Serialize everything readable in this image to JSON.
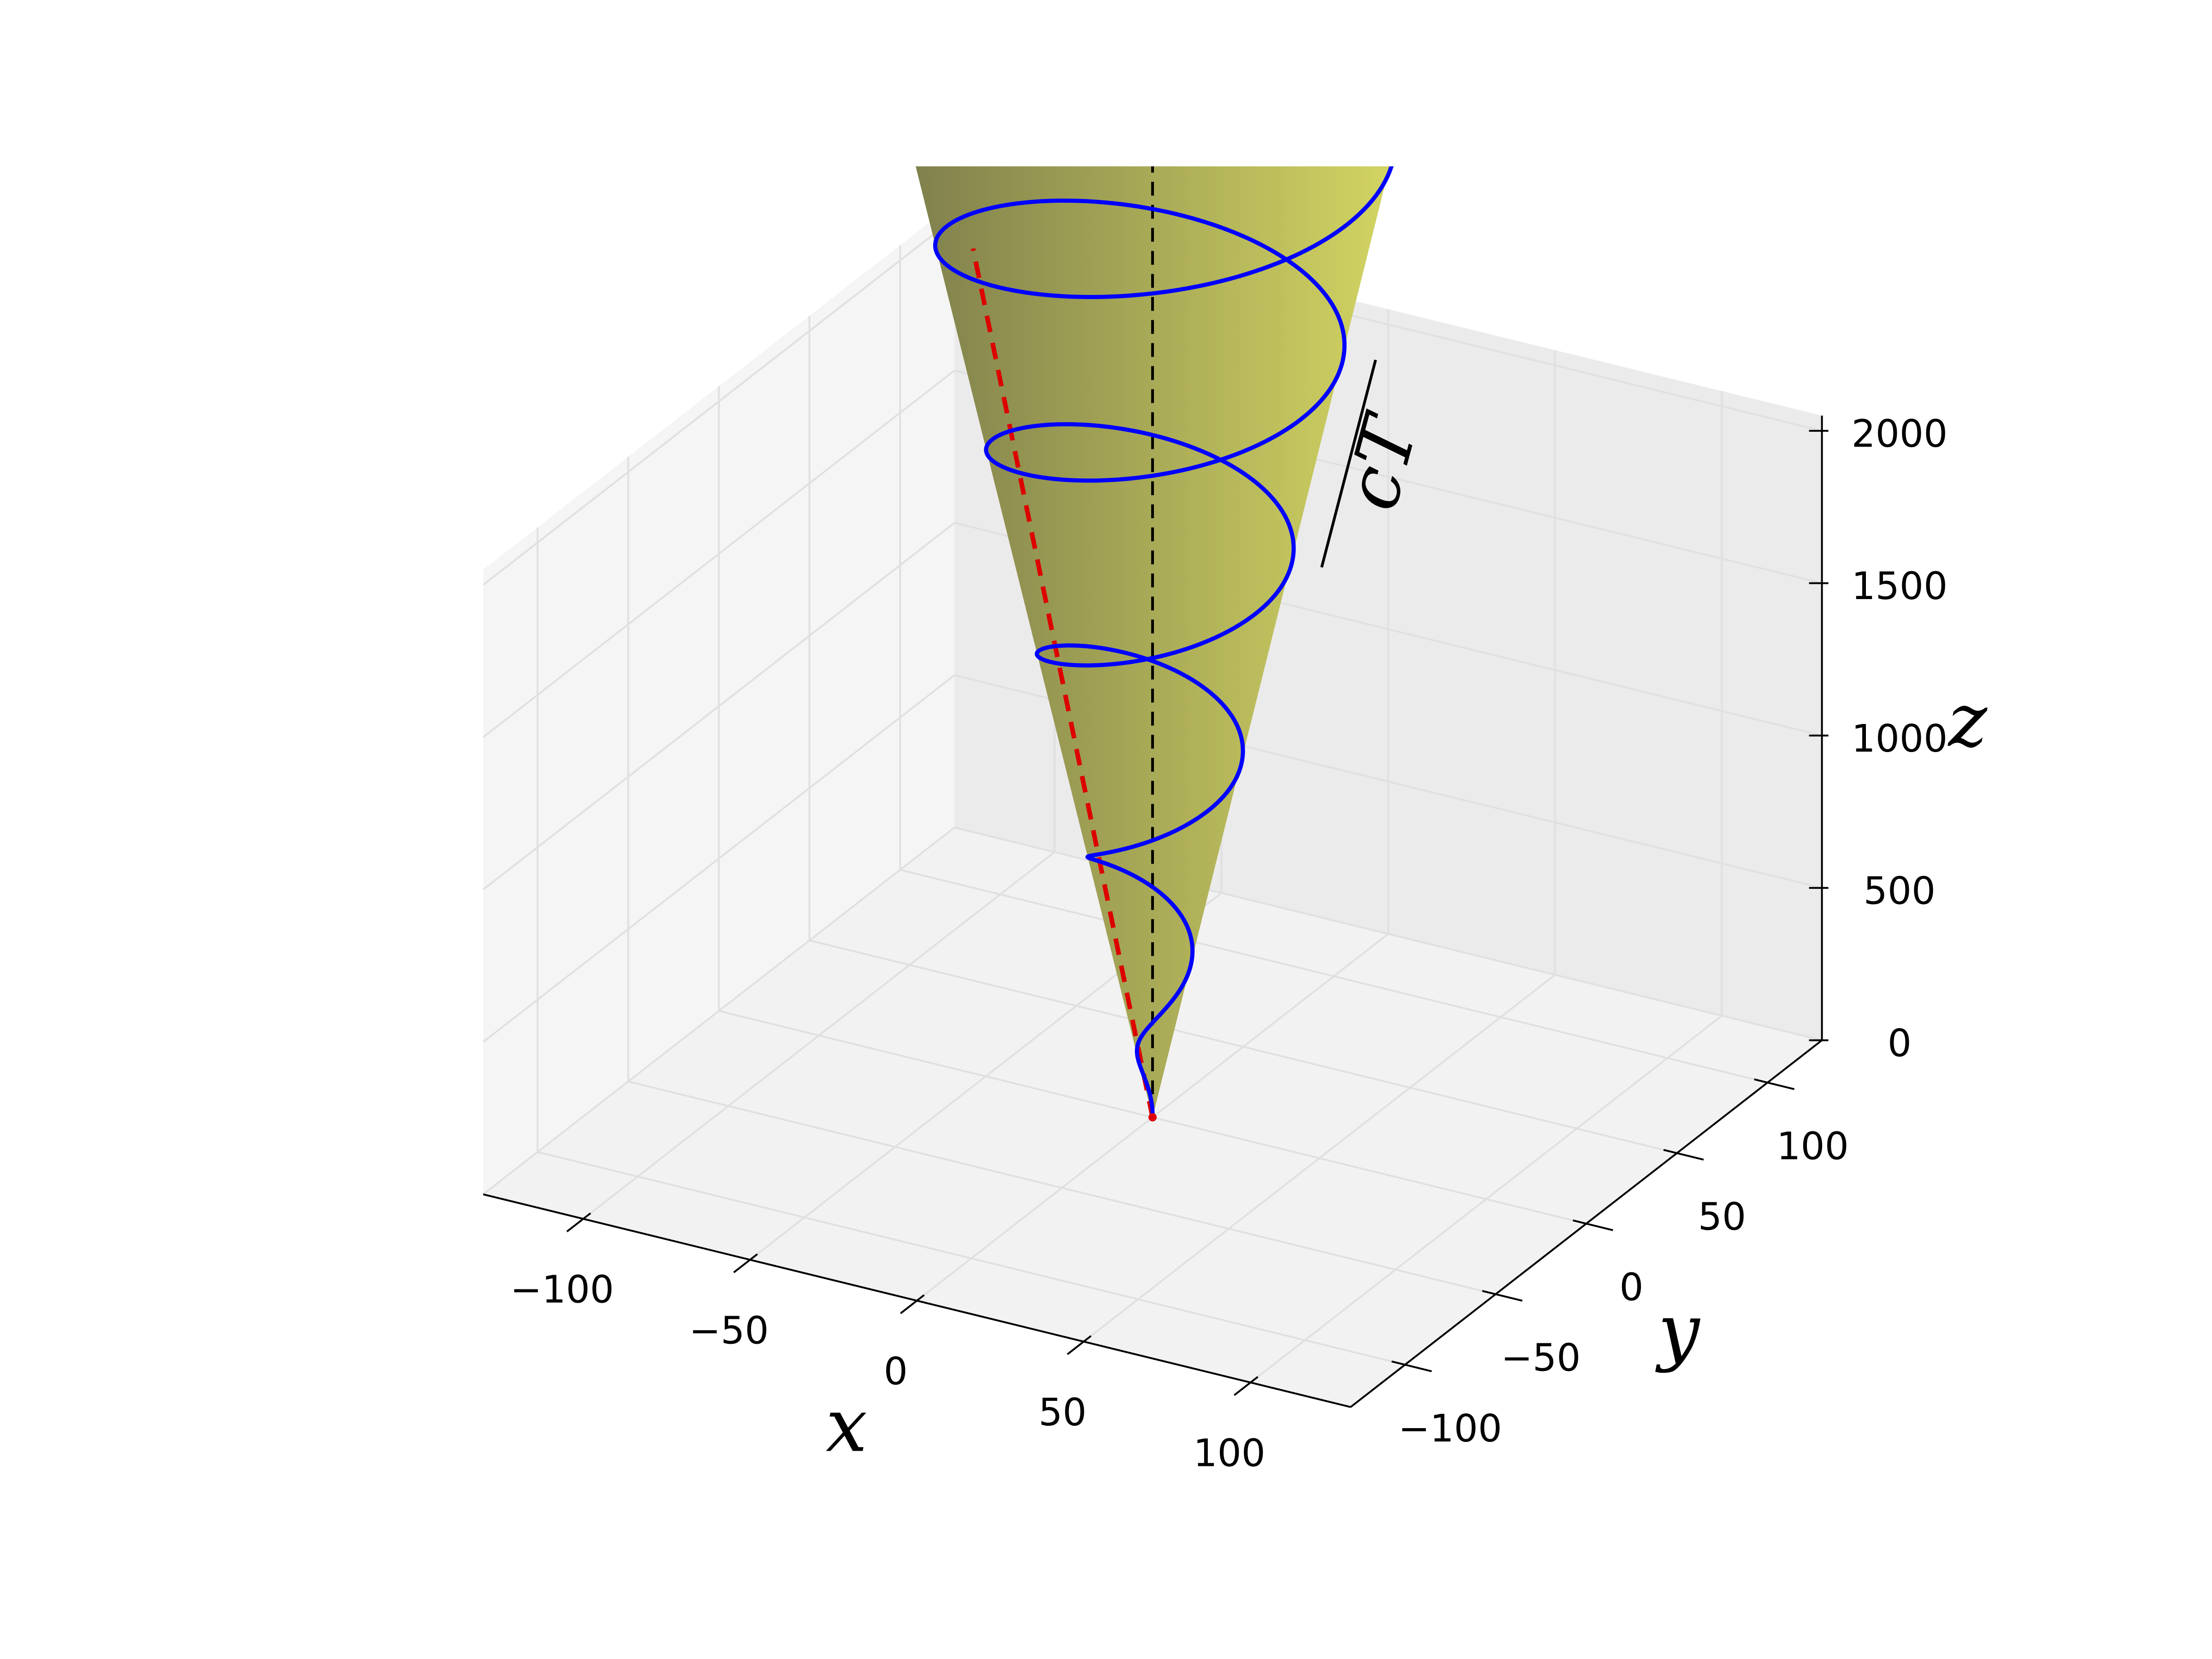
{
  "chart_data": {
    "type": "cone3d",
    "xlim": [
      -130,
      130
    ],
    "ylim": [
      -130,
      130
    ],
    "zlim": [
      0,
      2050
    ],
    "xticks": [
      {
        "value": -100,
        "label": "−100"
      },
      {
        "value": -50,
        "label": "−50"
      },
      0,
      50,
      100
    ],
    "yticks": [
      {
        "value": -100,
        "label": "−100"
      },
      {
        "value": -50,
        "label": "−50"
      },
      0,
      50,
      100
    ],
    "zticks": [
      0,
      500,
      1000,
      1500,
      2000
    ],
    "xlabel": "x",
    "ylabel": "y",
    "zlabel": "z",
    "annotation": "cT",
    "grid": true,
    "cone": {
      "slope": 0.02,
      "zmax": 3300,
      "color_dark": "#7e7e4c",
      "color_light": "#d4d662"
    },
    "helix": {
      "pitch": 670,
      "phase": 1.95,
      "zmax": 3300,
      "color": "#0000ff"
    },
    "ray": {
      "angle": -1.96,
      "zmax": 3050,
      "color": "#dd0000"
    },
    "axis_line": {
      "color": "#000000"
    }
  }
}
